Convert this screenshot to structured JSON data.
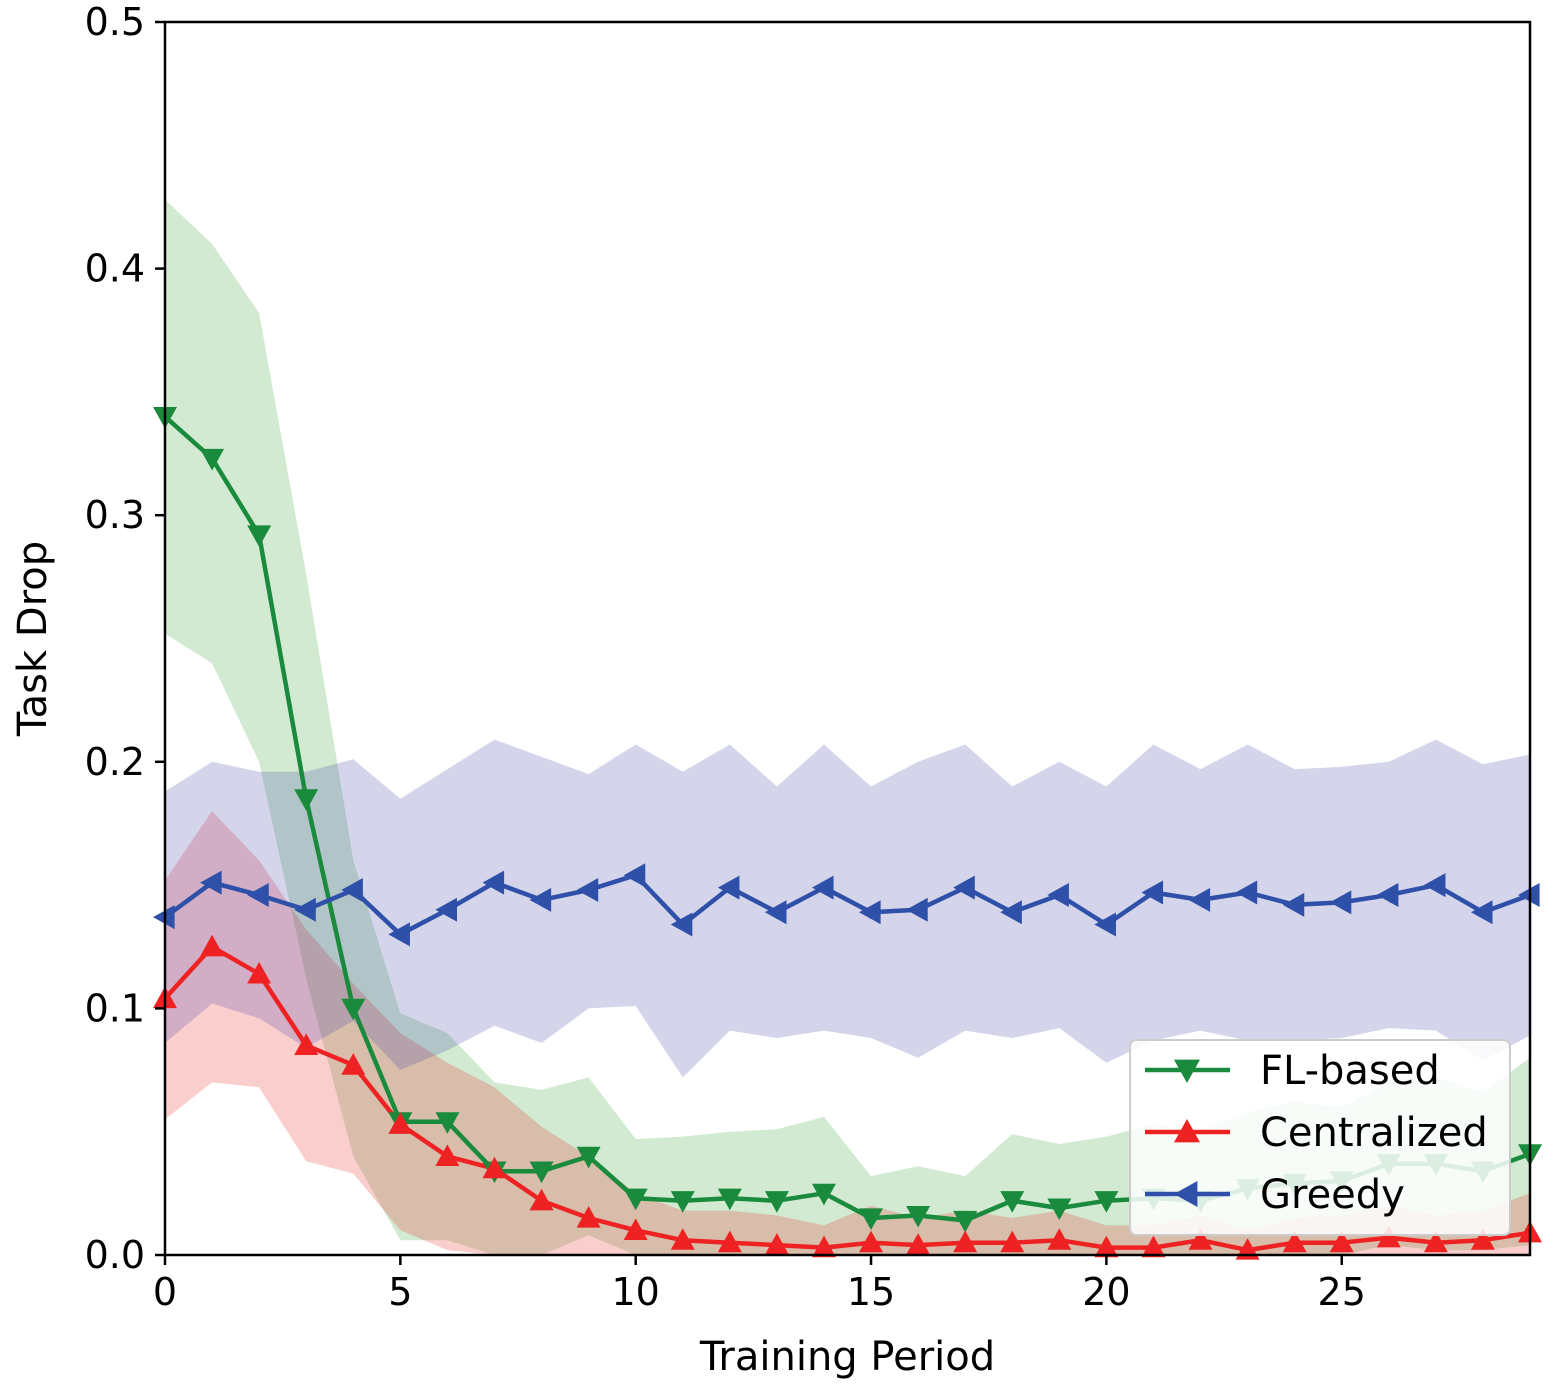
{
  "chart_data": {
    "type": "line",
    "xlabel": "Training Period",
    "ylabel": "Task Drop",
    "xlim": [
      0,
      29
    ],
    "ylim": [
      0,
      0.5
    ],
    "xticks": [
      0,
      5,
      10,
      15,
      20,
      25
    ],
    "xtick_labels": [
      "0",
      "5",
      "10",
      "15",
      "20",
      "25"
    ],
    "yticks": [
      0,
      0.1,
      0.2,
      0.3,
      0.4,
      0.5
    ],
    "ytick_labels": [
      "0.0",
      "0.1",
      "0.2",
      "0.3",
      "0.4",
      "0.5"
    ],
    "grid": false,
    "legend_position": "lower-right",
    "x": [
      0,
      1,
      2,
      3,
      4,
      5,
      6,
      7,
      8,
      9,
      10,
      11,
      12,
      13,
      14,
      15,
      16,
      17,
      18,
      19,
      20,
      21,
      22,
      23,
      24,
      25,
      26,
      27,
      28,
      29
    ],
    "series": [
      {
        "name": "FL-based",
        "color": "#1a8a3c",
        "marker": "triangle-down",
        "values": [
          0.34,
          0.323,
          0.292,
          0.185,
          0.1,
          0.054,
          0.054,
          0.034,
          0.034,
          0.04,
          0.023,
          0.022,
          0.023,
          0.022,
          0.025,
          0.015,
          0.016,
          0.014,
          0.022,
          0.019,
          0.022,
          0.023,
          0.022,
          0.027,
          0.029,
          0.03,
          0.037,
          0.037,
          0.034,
          0.041
        ],
        "upper": [
          0.428,
          0.41,
          0.382,
          0.276,
          0.16,
          0.098,
          0.09,
          0.07,
          0.067,
          0.072,
          0.047,
          0.048,
          0.05,
          0.051,
          0.056,
          0.032,
          0.036,
          0.032,
          0.049,
          0.045,
          0.048,
          0.053,
          0.05,
          0.058,
          0.062,
          0.06,
          0.07,
          0.072,
          0.066,
          0.08
        ],
        "lower": [
          0.252,
          0.24,
          0.2,
          0.112,
          0.04,
          0.006,
          0.006,
          0.0,
          0.0,
          0.008,
          0.0,
          0.0,
          0.0,
          0.0,
          0.0,
          0.0,
          0.0,
          0.0,
          0.0,
          0.0,
          0.0,
          0.0,
          0.0,
          0.0,
          0.0,
          0.0,
          0.004,
          0.002,
          0.002,
          0.004
        ]
      },
      {
        "name": "Centralized",
        "color": "#ee2222",
        "marker": "triangle-up",
        "values": [
          0.104,
          0.125,
          0.114,
          0.085,
          0.077,
          0.053,
          0.04,
          0.035,
          0.022,
          0.015,
          0.01,
          0.006,
          0.005,
          0.004,
          0.003,
          0.005,
          0.004,
          0.005,
          0.005,
          0.006,
          0.003,
          0.003,
          0.006,
          0.002,
          0.005,
          0.005,
          0.007,
          0.005,
          0.006,
          0.009
        ],
        "upper": [
          0.152,
          0.18,
          0.16,
          0.132,
          0.11,
          0.09,
          0.078,
          0.068,
          0.052,
          0.04,
          0.025,
          0.018,
          0.018,
          0.016,
          0.012,
          0.02,
          0.015,
          0.018,
          0.015,
          0.018,
          0.012,
          0.012,
          0.016,
          0.01,
          0.015,
          0.016,
          0.02,
          0.016,
          0.018,
          0.025
        ],
        "lower": [
          0.055,
          0.07,
          0.068,
          0.038,
          0.033,
          0.01,
          0.002,
          0.0,
          0.0,
          0.0,
          0.0,
          0.0,
          0.0,
          0.0,
          0.0,
          0.0,
          0.0,
          0.0,
          0.0,
          0.0,
          0.0,
          0.0,
          0.0,
          0.0,
          0.0,
          0.0,
          0.0,
          0.0,
          0.0,
          0.0
        ]
      },
      {
        "name": "Greedy",
        "color": "#2f50a8",
        "marker": "triangle-left",
        "values": [
          0.137,
          0.151,
          0.146,
          0.14,
          0.148,
          0.13,
          0.14,
          0.151,
          0.144,
          0.148,
          0.154,
          0.134,
          0.149,
          0.139,
          0.149,
          0.139,
          0.14,
          0.149,
          0.139,
          0.146,
          0.134,
          0.147,
          0.144,
          0.147,
          0.142,
          0.143,
          0.146,
          0.15,
          0.139,
          0.146
        ],
        "upper": [
          0.188,
          0.2,
          0.196,
          0.196,
          0.201,
          0.185,
          0.197,
          0.209,
          0.202,
          0.195,
          0.207,
          0.196,
          0.207,
          0.19,
          0.207,
          0.19,
          0.2,
          0.207,
          0.19,
          0.2,
          0.19,
          0.207,
          0.197,
          0.207,
          0.197,
          0.198,
          0.2,
          0.209,
          0.199,
          0.203
        ],
        "lower": [
          0.086,
          0.102,
          0.096,
          0.084,
          0.095,
          0.075,
          0.083,
          0.093,
          0.086,
          0.1,
          0.101,
          0.072,
          0.091,
          0.088,
          0.091,
          0.088,
          0.08,
          0.091,
          0.088,
          0.092,
          0.078,
          0.087,
          0.091,
          0.087,
          0.087,
          0.088,
          0.092,
          0.091,
          0.079,
          0.089
        ]
      }
    ]
  }
}
